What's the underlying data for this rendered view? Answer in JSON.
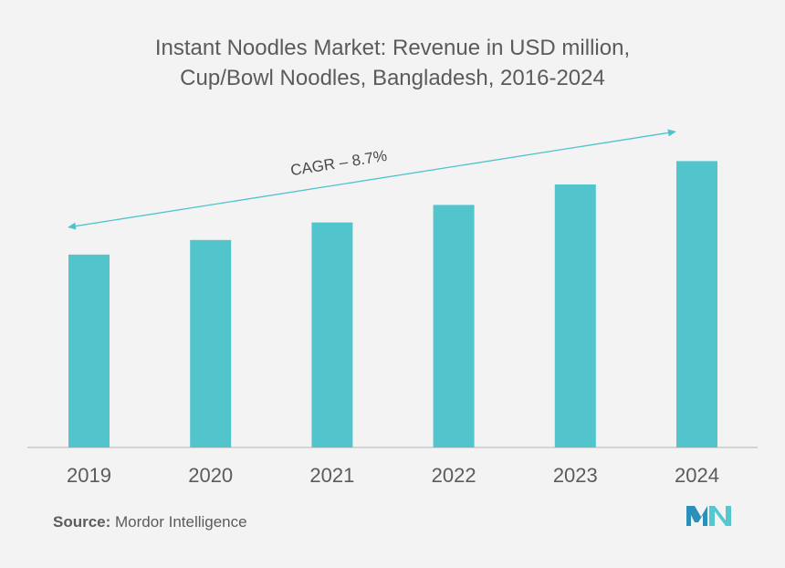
{
  "chart_data": {
    "type": "bar",
    "title_lines": [
      "Instant Noodles Market: Revenue in USD million,",
      "Cup/Bowl Noodles, Bangladesh, 2016-2024"
    ],
    "categories": [
      "2019",
      "2020",
      "2021",
      "2022",
      "2023",
      "2024"
    ],
    "values": [
      66,
      71,
      77,
      83,
      90,
      98
    ],
    "ylim": [
      0,
      110
    ],
    "xlabel": "",
    "ylabel": "",
    "grid": false,
    "legend": "none",
    "bar_color": "#52c5cc",
    "annotation": {
      "text": "CAGR – 8.7%",
      "color": "#4fc3cc"
    }
  },
  "source": {
    "label": "Source:",
    "text": " Mordor Intelligence"
  },
  "logo": {
    "name": "mordor-intelligence-logo",
    "colors": [
      "#2b8fb8",
      "#56c7cf"
    ]
  }
}
